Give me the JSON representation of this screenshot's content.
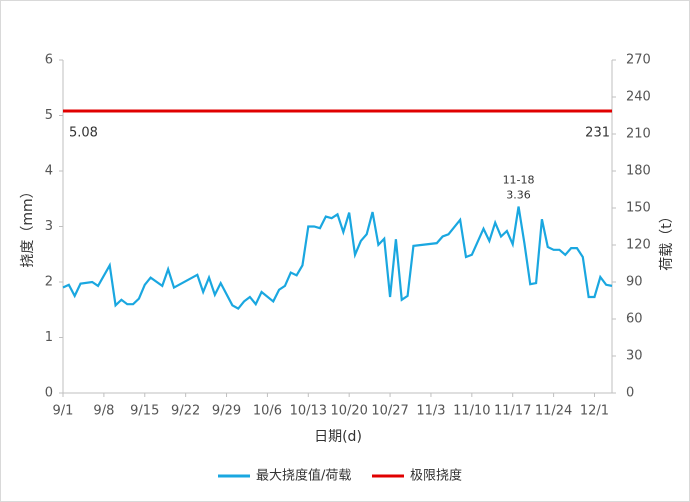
{
  "chart_data": {
    "type": "line",
    "x_label": "日期(d)",
    "y_label": "挠度（mm）",
    "y2_label": "荷载（t）",
    "xlim": [
      0,
      94
    ],
    "xticks": [
      {
        "value": 0,
        "label": "9/1"
      },
      {
        "value": 7,
        "label": "9/8"
      },
      {
        "value": 14,
        "label": "9/15"
      },
      {
        "value": 21,
        "label": "9/22"
      },
      {
        "value": 28,
        "label": "9/29"
      },
      {
        "value": 35,
        "label": "10/6"
      },
      {
        "value": 42,
        "label": "10/13"
      },
      {
        "value": 49,
        "label": "10/20"
      },
      {
        "value": 56,
        "label": "10/27"
      },
      {
        "value": 63,
        "label": "11/3"
      },
      {
        "value": 70,
        "label": "11/10"
      },
      {
        "value": 77,
        "label": "11/17"
      },
      {
        "value": 84,
        "label": "11/24"
      },
      {
        "value": 91,
        "label": "12/1"
      }
    ],
    "ylim": [
      0,
      6
    ],
    "yticks": [
      0,
      1,
      2,
      3,
      4,
      5,
      6
    ],
    "y2lim": [
      0,
      270
    ],
    "y2ticks": [
      0,
      30,
      60,
      90,
      120,
      150,
      180,
      210,
      240,
      270
    ],
    "series": [
      {
        "name": "最大挠度值/荷载",
        "color": "#1aa7e0",
        "x": [
          0,
          1,
          2,
          3,
          5,
          6,
          8,
          9,
          10,
          11,
          12,
          13,
          14,
          15,
          17,
          18,
          19,
          23,
          24,
          25,
          26,
          27,
          29,
          30,
          31,
          32,
          33,
          34,
          36,
          37,
          38,
          39,
          40,
          41,
          42,
          43,
          44,
          45,
          46,
          47,
          48,
          49,
          50,
          51,
          52,
          53,
          54,
          55,
          56,
          57,
          58,
          59,
          60,
          64,
          65,
          66,
          68,
          69,
          70,
          72,
          73,
          74,
          75,
          76,
          77,
          78,
          79,
          80,
          81,
          82,
          83,
          84,
          85,
          86,
          87,
          88,
          89,
          90,
          91,
          92,
          93,
          94
        ],
        "values": [
          1.9,
          1.95,
          1.75,
          1.97,
          2.0,
          1.93,
          2.3,
          1.58,
          1.68,
          1.6,
          1.6,
          1.7,
          1.95,
          2.08,
          1.93,
          2.23,
          1.9,
          2.13,
          1.82,
          2.08,
          1.77,
          1.98,
          1.58,
          1.52,
          1.65,
          1.73,
          1.6,
          1.82,
          1.65,
          1.86,
          1.93,
          2.17,
          2.12,
          2.3,
          3.0,
          3.0,
          2.97,
          3.18,
          3.15,
          3.22,
          2.9,
          3.25,
          2.49,
          2.74,
          2.86,
          3.26,
          2.67,
          2.78,
          1.73,
          2.77,
          1.68,
          1.75,
          2.65,
          2.7,
          2.82,
          2.86,
          3.12,
          2.45,
          2.49,
          2.96,
          2.74,
          3.07,
          2.82,
          2.92,
          2.68,
          3.36,
          2.7,
          1.96,
          1.98,
          3.13,
          2.63,
          2.58,
          2.58,
          2.49,
          2.61,
          2.61,
          2.45,
          1.73,
          1.73,
          2.09,
          1.95,
          1.93
        ]
      },
      {
        "name": "极限挠度",
        "color": "#e00000",
        "x": [
          0,
          94
        ],
        "values": [
          5.08,
          5.08
        ]
      }
    ],
    "annotations": [
      "5.08",
      "231",
      "11-18",
      "3.36"
    ]
  }
}
